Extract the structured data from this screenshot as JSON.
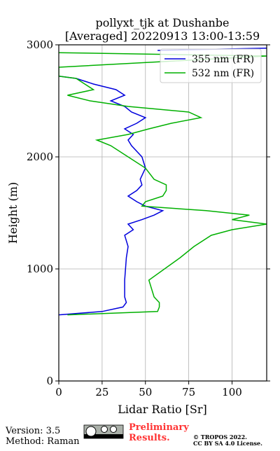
{
  "chart_data": {
    "type": "line",
    "title": "pollyxt_tjk at Dushanbe",
    "subtitle": "[Averaged] 20220913 13:00-13:59",
    "xlabel": "Lidar Ratio [Sr]",
    "ylabel": "Height (m)",
    "xlim": [
      0,
      120
    ],
    "xticks": [
      0,
      25,
      50,
      75,
      100
    ],
    "ylim": [
      0,
      3000
    ],
    "yticks": [
      0,
      1000,
      2000,
      3000
    ],
    "grid": true,
    "legend": "upper right",
    "y": [
      590,
      620,
      660,
      700,
      750,
      900,
      1100,
      1200,
      1300,
      1350,
      1400,
      1440,
      1480,
      1520,
      1560,
      1600,
      1650,
      1700,
      1750,
      1800,
      1900,
      2000,
      2100,
      2150,
      2200,
      2250,
      2300,
      2350,
      2400,
      2450,
      2500,
      2550,
      2600,
      2650,
      2700,
      2720,
      2800,
      2850,
      2900,
      2930,
      2950,
      2970
    ],
    "series": [
      {
        "name": "355 nm (FR)",
        "color": "#0000dd",
        "values": [
          0,
          25,
          37,
          39,
          38,
          38,
          39,
          40,
          38,
          43,
          40,
          48,
          55,
          60,
          50,
          45,
          40,
          45,
          48,
          47,
          50,
          48,
          42,
          40,
          43,
          38,
          45,
          50,
          42,
          38,
          30,
          38,
          33,
          20,
          10,
          0,
          null,
          null,
          null,
          null,
          57,
          120
        ]
      },
      {
        "name": "532 nm (FR)",
        "color": "#00b000",
        "values": [
          5,
          57,
          58,
          58,
          55,
          52,
          70,
          78,
          88,
          100,
          120,
          100,
          110,
          85,
          48,
          50,
          60,
          62,
          62,
          55,
          50,
          40,
          30,
          22,
          40,
          52,
          65,
          82,
          75,
          40,
          18,
          5,
          20,
          15,
          10,
          0,
          0,
          60,
          120,
          0,
          null,
          null
        ]
      }
    ]
  },
  "footer": {
    "version": "Version: 3.5",
    "method": "Method: Raman",
    "status": "Preliminary Results.",
    "copyright": "© TROPOS 2022.",
    "license": "CC BY SA 4.0 License."
  }
}
